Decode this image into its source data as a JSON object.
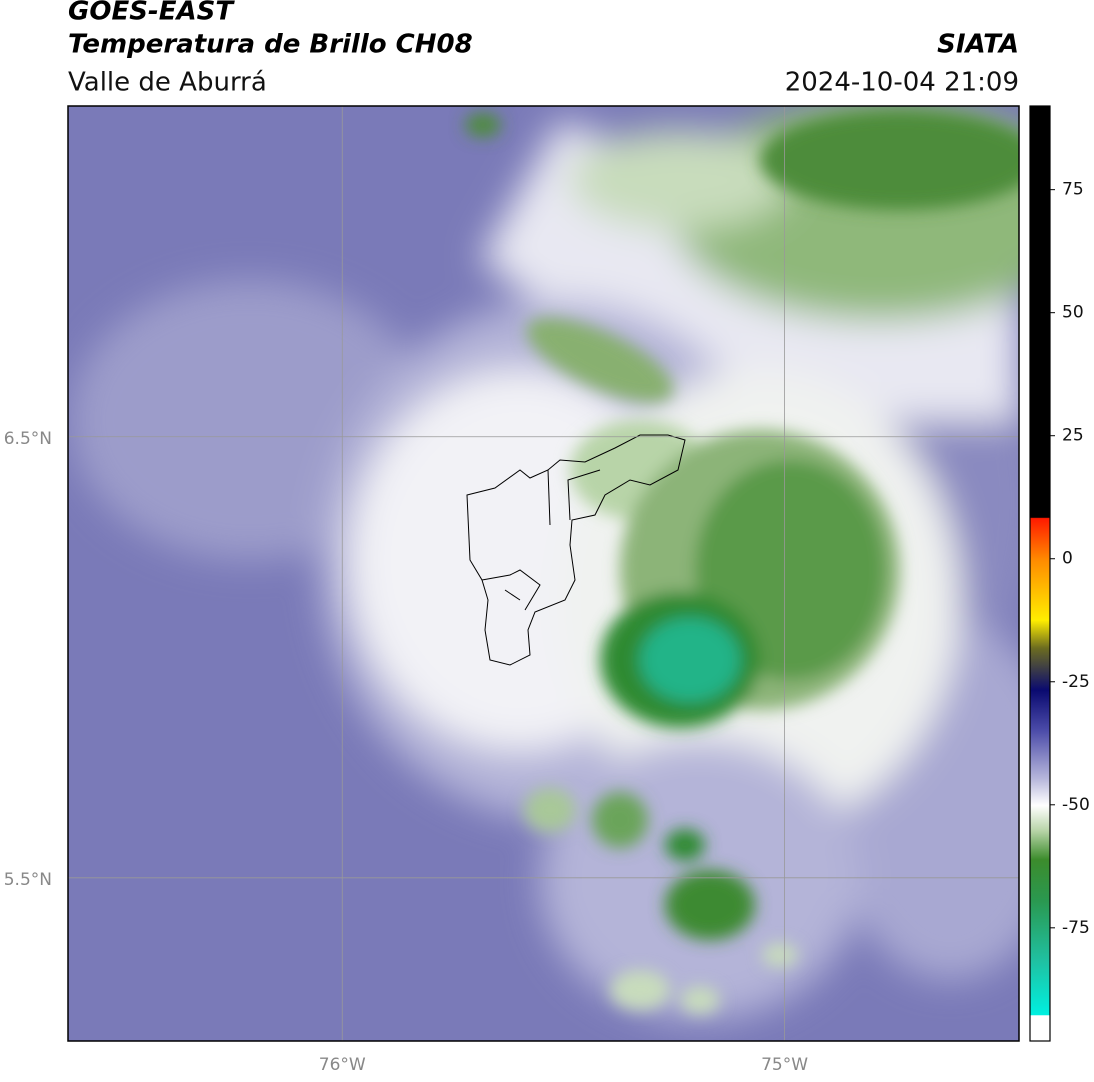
{
  "header": {
    "title": "GOES-EAST",
    "subtitle": "Temperatura de Brillo CH08",
    "region": "Valle de Aburrá",
    "source": "SIATA",
    "datetime": "2024-10-04 21:09"
  },
  "map": {
    "xlim": [
      -76.62,
      -74.47
    ],
    "ylim": [
      5.13,
      7.25
    ],
    "xticks": [
      {
        "value": -76,
        "label": "76°W"
      },
      {
        "value": -75,
        "label": "75°W"
      }
    ],
    "yticks": [
      {
        "value": 6.5,
        "label": "6.5°N"
      },
      {
        "value": 5.5,
        "label": "5.5°N"
      }
    ]
  },
  "colorbar": {
    "lim": [
      -98,
      92
    ],
    "ticks": [
      75,
      50,
      25,
      0,
      -25,
      -50,
      -75
    ]
  }
}
